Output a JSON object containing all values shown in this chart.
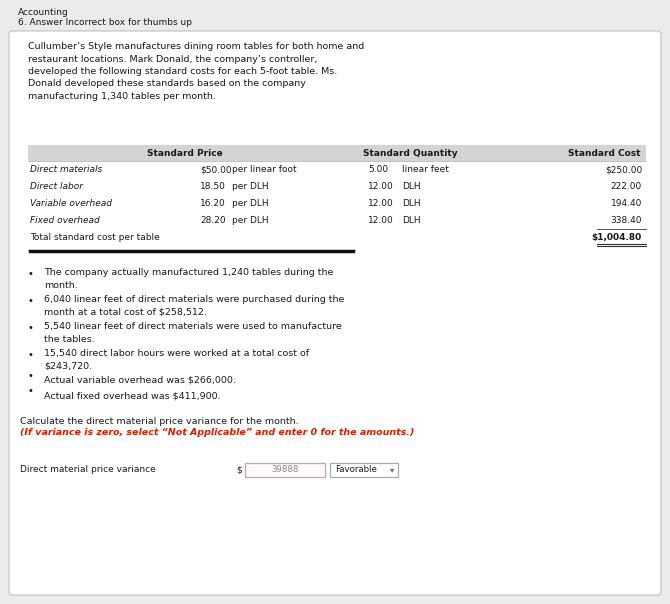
{
  "title_line1": "Accounting",
  "title_line2": "6. Answer Incorrect box for thumbs up",
  "paragraph": "Cullumber’s Style manufactures dining room tables for both home and\nrestaurant locations. Mark Donald, the company’s controller,\ndeveloped the following standard costs for each 5-foot table. Ms.\nDonald developed these standards based on the company\nmanufacturing 1,340 tables per month.",
  "table_headers": [
    "",
    "Standard Price",
    "Standard Quantity",
    "Standard Cost"
  ],
  "table_rows": [
    [
      "Direct materials",
      "$50.00",
      "per linear foot",
      "5.00",
      "linear feet",
      "$250.00"
    ],
    [
      "Direct labor",
      "18.50",
      "per DLH",
      "12.00",
      "DLH",
      "222.00"
    ],
    [
      "Variable overhead",
      "16.20",
      "per DLH",
      "12.00",
      "DLH",
      "194.40"
    ],
    [
      "Fixed overhead",
      "28.20",
      "per DLH",
      "12.00",
      "DLH",
      "338.40"
    ],
    [
      "Total standard cost per table",
      "",
      "",
      "",
      "",
      "$1,004.80"
    ]
  ],
  "bullet_points": [
    "The company actually manufactured 1,240 tables during the\nmonth.",
    "6,040 linear feet of direct materials were purchased during the\nmonth at a total cost of $258,512.",
    "5,540 linear feet of direct materials were used to manufacture\nthe tables.",
    "15,540 direct labor hours were worked at a total cost of\n$243,720.",
    "Actual variable overhead was $266,000.",
    "Actual fixed overhead was $411,900."
  ],
  "question_normal": "Calculate the direct material price variance for the month. ",
  "question_italic_red": "(If variance is zero, select “Not Applicable” and enter 0 for the amounts.)",
  "label": "Direct material price variance",
  "input_value": "39888",
  "dropdown_value": "Favorable",
  "bg_color": "#ebebeb",
  "inner_bg": "#ffffff",
  "header_bg": "#d4d4d4",
  "border_color": "#bbbbbb",
  "text_color": "#1a1a1a",
  "red_color": "#cc2200",
  "input_border": "#d0a0a0",
  "input_bg": "#fffafa"
}
